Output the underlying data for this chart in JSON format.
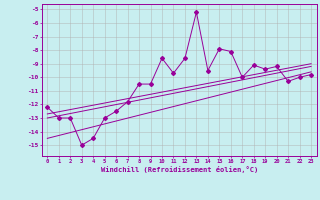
{
  "x_data": [
    0,
    1,
    2,
    3,
    4,
    5,
    6,
    7,
    8,
    9,
    10,
    11,
    12,
    13,
    14,
    15,
    16,
    17,
    18,
    19,
    20,
    21,
    22,
    23
  ],
  "y_main": [
    -12.2,
    -13.0,
    -13.0,
    -15.0,
    -14.5,
    -13.0,
    -12.5,
    -11.8,
    -10.5,
    -10.5,
    -8.6,
    -9.7,
    -8.6,
    -5.2,
    -9.5,
    -7.9,
    -8.1,
    -10.0,
    -9.1,
    -9.4,
    -9.2,
    -10.3,
    -10.0,
    -9.8
  ],
  "line_color": "#990099",
  "bg_color": "#c8eef0",
  "grid_color": "#b0b0b0",
  "ylim": [
    -15.8,
    -4.6
  ],
  "xlim": [
    -0.5,
    23.5
  ],
  "yticks": [
    -15,
    -14,
    -13,
    -12,
    -11,
    -10,
    -9,
    -8,
    -7,
    -6,
    -5
  ],
  "xticks": [
    0,
    1,
    2,
    3,
    4,
    5,
    6,
    7,
    8,
    9,
    10,
    11,
    12,
    13,
    14,
    15,
    16,
    17,
    18,
    19,
    20,
    21,
    22,
    23
  ],
  "xlabel": "Windchill (Refroidissement éolien,°C)",
  "reg_lines": [
    [
      -14.5,
      -9.6
    ],
    [
      -13.0,
      -9.2
    ],
    [
      -12.7,
      -9.0
    ]
  ]
}
